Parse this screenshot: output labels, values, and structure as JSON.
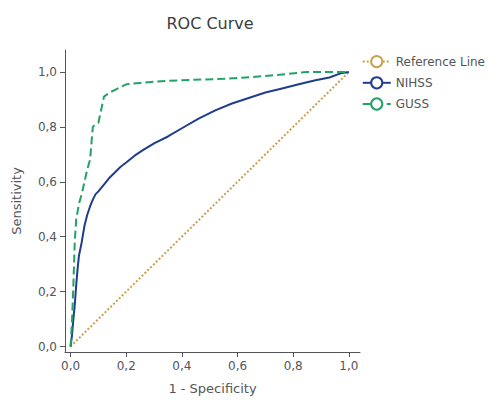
{
  "chart_data": {
    "type": "line",
    "title": "ROC Curve",
    "x_label": "1 - Specificity",
    "y_label": "Sensitivity",
    "xlim": [
      -0.02,
      1.04
    ],
    "ylim": [
      -0.02,
      1.08
    ],
    "xticks": [
      {
        "value": 0.0,
        "label": "0,0"
      },
      {
        "value": 0.2,
        "label": "0,2"
      },
      {
        "value": 0.4,
        "label": "0,4"
      },
      {
        "value": 0.6,
        "label": "0,6"
      },
      {
        "value": 0.8,
        "label": "0,8"
      },
      {
        "value": 1.0,
        "label": "1,0"
      }
    ],
    "yticks": [
      {
        "value": 0.0,
        "label": "0,0"
      },
      {
        "value": 0.2,
        "label": "0,2"
      },
      {
        "value": 0.4,
        "label": "0,4"
      },
      {
        "value": 0.6,
        "label": "0,6"
      },
      {
        "value": 0.8,
        "label": "0,8"
      },
      {
        "value": 1.0,
        "label": "1,0"
      }
    ],
    "grid": false,
    "legend": "right",
    "series": [
      {
        "name": "Reference Line",
        "color": "#c8a050",
        "line_style": "dotted",
        "x": [
          0.0,
          1.0
        ],
        "values": [
          0.0,
          1.0
        ]
      },
      {
        "name": "NIHSS",
        "color": "#1f3d8c",
        "line_style": "solid",
        "x": [
          0.0,
          0.005,
          0.01,
          0.015,
          0.02,
          0.025,
          0.03,
          0.04,
          0.05,
          0.06,
          0.07,
          0.08,
          0.09,
          0.1,
          0.12,
          0.14,
          0.16,
          0.18,
          0.2,
          0.23,
          0.26,
          0.3,
          0.35,
          0.4,
          0.46,
          0.52,
          0.58,
          0.64,
          0.7,
          0.76,
          0.82,
          0.88,
          0.93,
          0.97,
          1.0
        ],
        "values": [
          0.0,
          0.04,
          0.1,
          0.15,
          0.22,
          0.28,
          0.33,
          0.38,
          0.44,
          0.48,
          0.51,
          0.535,
          0.555,
          0.565,
          0.59,
          0.615,
          0.635,
          0.655,
          0.67,
          0.695,
          0.715,
          0.74,
          0.765,
          0.795,
          0.83,
          0.86,
          0.885,
          0.905,
          0.925,
          0.94,
          0.955,
          0.97,
          0.98,
          0.995,
          1.0
        ]
      },
      {
        "name": "GUSS",
        "color": "#21a366",
        "line_style": "dashed",
        "x": [
          0.0,
          0.005,
          0.01,
          0.015,
          0.02,
          0.03,
          0.04,
          0.05,
          0.06,
          0.07,
          0.08,
          0.09,
          0.1,
          0.12,
          0.14,
          0.16,
          0.18,
          0.2,
          0.25,
          0.3,
          0.4,
          0.55,
          0.7,
          0.85,
          1.0
        ],
        "values": [
          0.0,
          0.09,
          0.22,
          0.38,
          0.46,
          0.52,
          0.555,
          0.6,
          0.645,
          0.68,
          0.8,
          0.81,
          0.815,
          0.91,
          0.925,
          0.935,
          0.945,
          0.955,
          0.96,
          0.965,
          0.97,
          0.975,
          0.985,
          1.0,
          1.0
        ]
      }
    ]
  }
}
